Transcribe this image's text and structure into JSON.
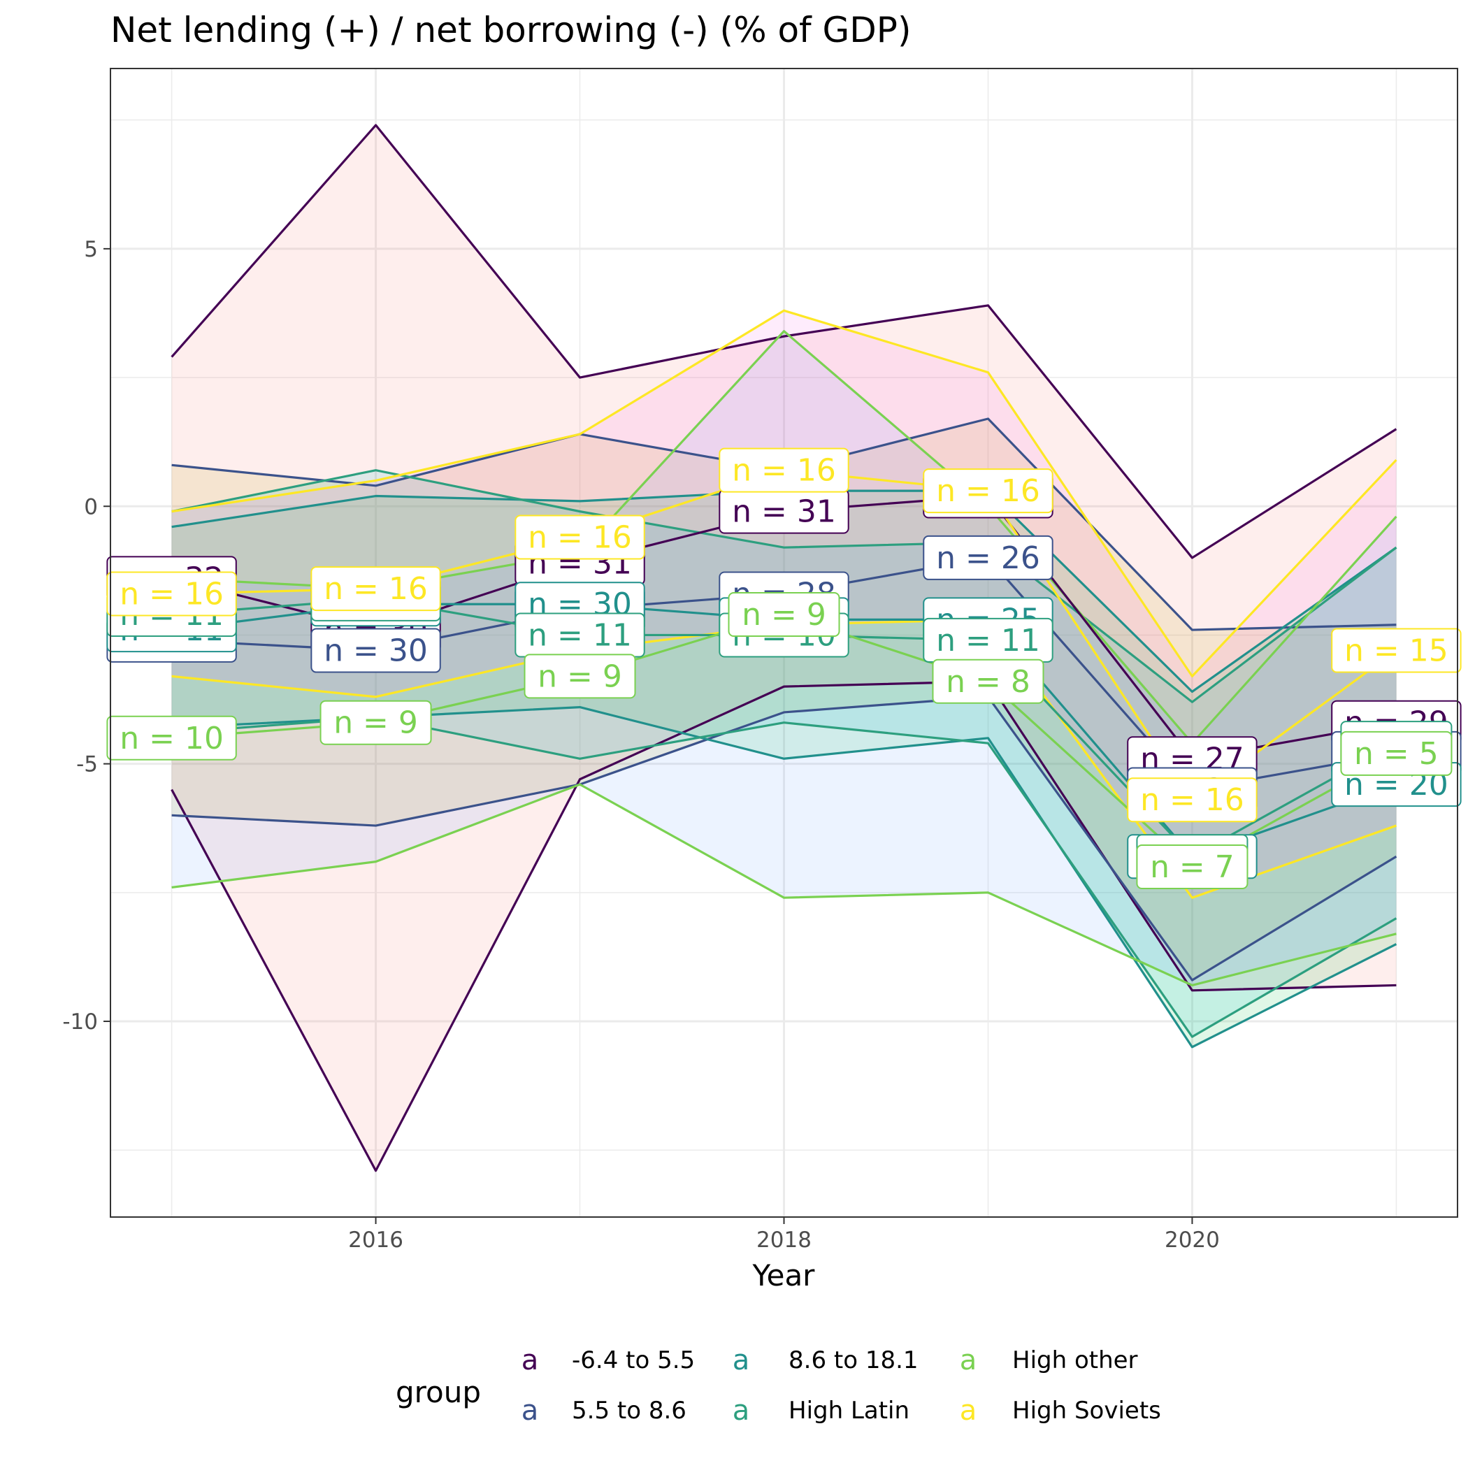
{
  "chart_data": {
    "type": "line",
    "title": "Net lending (+) / net borrowing (-) (% of GDP)",
    "xlabel": "Year",
    "ylabel": "",
    "xlim": [
      2014.7,
      2021.3
    ],
    "ylim": [
      -13.8,
      8.5
    ],
    "x_ticks": [
      2016,
      2018,
      2020
    ],
    "y_ticks": [
      5,
      0,
      -5,
      -10
    ],
    "y_tick_labels": [
      "5",
      "0",
      "-5",
      "-10"
    ],
    "grid": true,
    "legend": {
      "title": "group",
      "position": "bottom",
      "key_glyph": "a",
      "entries": [
        "-6.4 to 5.5",
        "5.5 to 8.6",
        "8.6 to 18.1",
        "High Latin",
        "High other",
        "High Soviets"
      ]
    },
    "x": [
      2015,
      2016,
      2017,
      2018,
      2019,
      2020,
      2021
    ],
    "series": [
      {
        "name": "-6.4 to 5.5",
        "color": "#440154",
        "fill": "#f8766d",
        "max": [
          2.9,
          7.4,
          2.5,
          3.3,
          3.9,
          -1.0,
          1.5
        ],
        "median": [
          -1.4,
          -2.4,
          -1.1,
          -0.1,
          0.2,
          -4.9,
          -4.2
        ],
        "min": [
          -5.5,
          -12.9,
          -5.3,
          -3.5,
          -3.4,
          -9.4,
          -9.3
        ],
        "n": [
          "n = 32",
          "n = 30",
          "n = 31",
          "n = 31",
          "n = 31",
          "n = 27",
          "n = 29"
        ]
      },
      {
        "name": "5.5 to 8.6",
        "color": "#3b528b",
        "fill": "#b79f00",
        "max": [
          0.8,
          0.4,
          1.4,
          0.7,
          1.7,
          -2.4,
          -2.3
        ],
        "median": [
          -2.6,
          -2.8,
          -2.0,
          -1.7,
          -1.0,
          -5.5,
          -4.8
        ],
        "min": [
          -6.0,
          -6.2,
          -5.4,
          -4.0,
          -3.7,
          -9.2,
          -6.8
        ],
        "n": [
          "n = 32",
          "n = 30",
          "n = 30",
          "n = 28",
          "n = 26",
          "n = 24",
          "n = 21"
        ]
      },
      {
        "name": "8.6 to 18.1",
        "color": "#21908c",
        "fill": "#00ba38",
        "max": [
          -0.4,
          0.2,
          0.1,
          0.3,
          0.3,
          -3.6,
          -0.8
        ],
        "median": [
          -2.4,
          -1.9,
          -1.9,
          -2.2,
          -2.2,
          -6.8,
          -5.4
        ],
        "min": [
          -4.3,
          -4.1,
          -3.9,
          -4.9,
          -4.5,
          -10.5,
          -8.5
        ],
        "n": [
          "n = 11",
          "n = 11",
          "n = 30",
          "n = 28",
          "n = 25",
          "n = 21",
          "n = 20"
        ]
      },
      {
        "name": "High Latin",
        "color": "#2d9f7f",
        "fill": "#00bfc4",
        "max": [
          -0.1,
          0.7,
          -0.1,
          -0.8,
          -0.7,
          -3.8,
          -0.8
        ],
        "median": [
          -2.1,
          -1.8,
          -2.5,
          -2.5,
          -2.6,
          -6.8,
          -4.6
        ],
        "min": [
          -4.4,
          -4.1,
          -4.9,
          -4.2,
          -4.6,
          -10.3,
          -8.0
        ],
        "n": [
          "n = 11",
          "n = 11",
          "n = 11",
          "n = 10",
          "n = 11",
          "n = 7",
          "n = 5"
        ]
      },
      {
        "name": "High other",
        "color": "#7ad151",
        "fill": "#619cff",
        "max": [
          -1.4,
          -1.6,
          -0.9,
          3.4,
          0.0,
          -4.6,
          -0.2
        ],
        "median": [
          -4.5,
          -4.2,
          -3.3,
          -2.1,
          -3.4,
          -7.0,
          -4.8
        ],
        "min": [
          -7.4,
          -6.9,
          -5.4,
          -7.6,
          -7.5,
          -9.3,
          -8.3
        ],
        "n": [
          "n = 10",
          "n = 9",
          "n = 9",
          "n = 9",
          "n = 8",
          "n = 7",
          "n = 5"
        ]
      },
      {
        "name": "High Soviets",
        "color": "#fde725",
        "fill": "#f564e3",
        "max": [
          -0.1,
          0.5,
          1.4,
          3.8,
          2.6,
          -3.3,
          0.9
        ],
        "median": [
          -1.7,
          -1.6,
          -0.6,
          0.7,
          0.3,
          -5.7,
          -2.8
        ],
        "min": [
          -3.3,
          -3.7,
          -2.8,
          -2.3,
          -2.2,
          -7.6,
          -6.2
        ],
        "n": [
          "n = 16",
          "n = 16",
          "n = 16",
          "n = 16",
          "n = 16",
          "n = 16",
          "n = 15"
        ]
      }
    ]
  }
}
